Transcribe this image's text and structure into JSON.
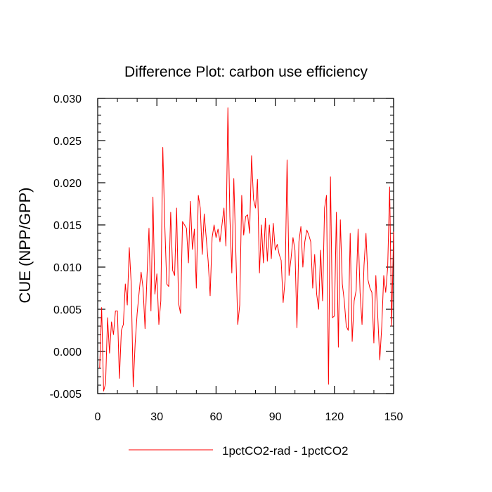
{
  "chart_data": {
    "type": "line",
    "title": "Difference Plot: carbon use efficiency",
    "xlabel": "",
    "ylabel": "CUE  (NPP/GPP)",
    "xlim": [
      0,
      150
    ],
    "ylim": [
      -0.005,
      0.03
    ],
    "xticks": [
      0,
      30,
      60,
      90,
      120,
      150
    ],
    "yticks": [
      -0.005,
      0.0,
      0.005,
      0.01,
      0.015,
      0.02,
      0.025,
      0.03
    ],
    "xtick_labels": [
      "0",
      "30",
      "60",
      "90",
      "120",
      "150"
    ],
    "ytick_labels": [
      "-0.005",
      "0.000",
      "0.005",
      "0.010",
      "0.015",
      "0.020",
      "0.025",
      "0.030"
    ],
    "grid": false,
    "legend_position": "bottom-center",
    "series": [
      {
        "name": "1pctCO2-rad - 1pctCO2",
        "color": "#ff0000",
        "x": [
          1,
          2,
          3,
          4,
          5,
          6,
          7,
          8,
          9,
          10,
          11,
          12,
          13,
          14,
          15,
          16,
          17,
          18,
          19,
          20,
          21,
          22,
          23,
          24,
          25,
          26,
          27,
          28,
          29,
          30,
          31,
          32,
          33,
          34,
          35,
          36,
          37,
          38,
          39,
          40,
          41,
          42,
          43,
          44,
          45,
          46,
          47,
          48,
          49,
          50,
          51,
          52,
          53,
          54,
          55,
          56,
          57,
          58,
          59,
          60,
          61,
          62,
          63,
          64,
          65,
          66,
          67,
          68,
          69,
          70,
          71,
          72,
          73,
          74,
          75,
          76,
          77,
          78,
          79,
          80,
          81,
          82,
          83,
          84,
          85,
          86,
          87,
          88,
          89,
          90,
          91,
          92,
          93,
          94,
          95,
          96,
          97,
          98,
          99,
          100,
          101,
          102,
          103,
          104,
          105,
          106,
          107,
          108,
          109,
          110,
          111,
          112,
          113,
          114,
          115,
          116,
          117,
          118,
          119,
          120,
          121,
          122,
          123,
          124,
          125,
          126,
          127,
          128,
          129,
          130,
          131,
          132,
          133,
          134,
          135,
          136,
          137,
          138,
          139,
          140,
          141,
          142,
          143,
          144,
          145,
          146,
          147,
          148,
          149,
          150
        ],
        "y": [
          -0.002,
          0.0052,
          -0.0047,
          -0.0038,
          0.004,
          -0.0002,
          0.0035,
          0.002,
          0.0048,
          0.0048,
          -0.0032,
          0.0025,
          0.0032,
          0.008,
          0.0055,
          0.0123,
          0.008,
          -0.0042,
          0.001,
          0.0045,
          0.007,
          0.0094,
          0.0075,
          0.0027,
          0.009,
          0.0146,
          0.0048,
          0.0183,
          0.0068,
          0.0092,
          0.0032,
          0.006,
          0.0242,
          0.015,
          0.008,
          0.0077,
          0.0165,
          0.0096,
          0.009,
          0.017,
          0.0057,
          0.0045,
          0.0154,
          0.015,
          0.0146,
          0.0105,
          0.0178,
          0.0121,
          0.0145,
          0.0075,
          0.0185,
          0.017,
          0.0115,
          0.0163,
          0.0135,
          0.0107,
          0.0066,
          0.0135,
          0.015,
          0.0135,
          0.0145,
          0.013,
          0.015,
          0.017,
          0.0125,
          0.0289,
          0.016,
          0.0093,
          0.0205,
          0.012,
          0.0032,
          0.0055,
          0.0185,
          0.0138,
          0.016,
          0.0162,
          0.014,
          0.0232,
          0.018,
          0.017,
          0.0204,
          0.0093,
          0.015,
          0.0105,
          0.0158,
          0.0107,
          0.015,
          0.011,
          0.0152,
          0.012,
          0.0127,
          0.0115,
          0.0108,
          0.0058,
          0.0085,
          0.0227,
          0.009,
          0.011,
          0.0135,
          0.012,
          0.0028,
          0.013,
          0.0148,
          0.01,
          0.013,
          0.0144,
          0.0138,
          0.013,
          0.0075,
          0.0115,
          0.0068,
          0.005,
          0.012,
          0.006,
          0.017,
          0.0185,
          -0.0039,
          0.0207,
          0.004,
          0.0042,
          0.0165,
          0.0005,
          0.0156,
          0.008,
          0.006,
          0.003,
          0.0025,
          0.014,
          0.0012,
          0.006,
          0.0072,
          0.0145,
          0.007,
          0.0032,
          0.0102,
          0.014,
          0.0085,
          0.0075,
          0.007,
          0.001,
          0.009,
          0.004,
          -0.001,
          0.003,
          0.009,
          0.007,
          0.01,
          0.0195,
          0.003,
          0.0142
        ]
      }
    ]
  }
}
